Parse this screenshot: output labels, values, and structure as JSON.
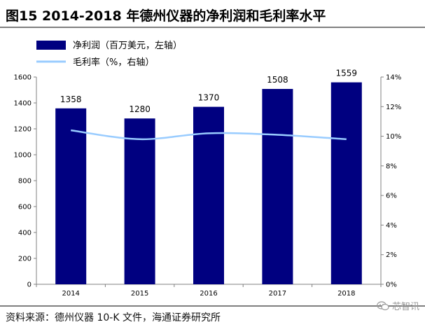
{
  "header": {
    "title": "图15 2014-2018 年德州仪器的净利润和毛利率水平"
  },
  "footer": {
    "source": "资料来源：德州仪器 10-K 文件，海通证券研究所"
  },
  "watermark": {
    "text": "芯智讯",
    "icon": "wechat-icon"
  },
  "colors": {
    "bar": "#000080",
    "line": "#99ccff",
    "axis": "#808080"
  },
  "chart_data": {
    "type": "bar",
    "categories": [
      "2014",
      "2015",
      "2016",
      "2017",
      "2018"
    ],
    "series": [
      {
        "name": "净利润（百万美元，左轴）",
        "type": "bar",
        "axis": "left",
        "values": [
          1358,
          1280,
          1370,
          1508,
          1559
        ],
        "labels": [
          "1358",
          "1280",
          "1370",
          "1508",
          "1559"
        ]
      },
      {
        "name": "毛利率（%，右轴）",
        "type": "line",
        "axis": "right",
        "values": [
          10.4,
          9.8,
          10.2,
          10.1,
          9.8
        ]
      }
    ],
    "y_left": {
      "ylim": [
        0,
        1600
      ],
      "ticks": [
        0,
        200,
        400,
        600,
        800,
        1000,
        1200,
        1400,
        1600
      ],
      "tick_labels": [
        "0",
        "200",
        "400",
        "600",
        "800",
        "1000",
        "1200",
        "1400",
        "1600"
      ]
    },
    "y_right": {
      "ylim": [
        0,
        14
      ],
      "ticks": [
        0,
        2,
        4,
        6,
        8,
        10,
        12,
        14
      ],
      "tick_labels": [
        "0%",
        "2%",
        "4%",
        "6%",
        "8%",
        "10%",
        "12%",
        "14%"
      ]
    },
    "grid": false,
    "legend": "top-left"
  }
}
